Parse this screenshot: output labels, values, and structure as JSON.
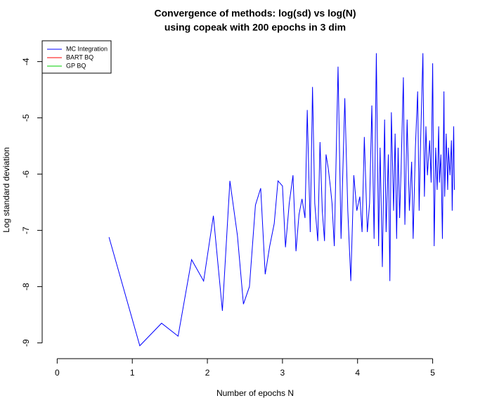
{
  "chart_data": {
    "type": "line",
    "title": "Convergence of methods: log(sd) vs log(N)",
    "subtitle": "using copeak with 200 epochs in 3 dim",
    "x_label": "Number of epochs N",
    "y_label": "Log standard deviation",
    "xlim": [
      -0.2,
      5.5
    ],
    "ylim": [
      -9.28,
      -3.63
    ],
    "xticks": [
      0,
      1,
      2,
      3,
      4,
      5
    ],
    "yticks": [
      -9,
      -8,
      -7,
      -6,
      -5,
      -4
    ],
    "grid": false,
    "legend": "topleft",
    "series": [
      {
        "name": "MC Integration",
        "color": "#0000ff",
        "x": [
          0.69,
          1.1,
          1.39,
          1.61,
          1.79,
          1.95,
          2.08,
          2.2,
          2.3,
          2.4,
          2.48,
          2.56,
          2.64,
          2.71,
          2.77,
          2.83,
          2.89,
          2.94,
          3.0,
          3.04,
          3.09,
          3.14,
          3.18,
          3.22,
          3.26,
          3.3,
          3.33,
          3.37,
          3.4,
          3.43,
          3.47,
          3.5,
          3.53,
          3.56,
          3.58,
          3.61,
          3.64,
          3.66,
          3.69,
          3.74,
          3.78,
          3.83,
          3.87,
          3.91,
          3.95,
          3.99,
          4.03,
          4.06,
          4.09,
          4.13,
          4.16,
          4.19,
          4.22,
          4.25,
          4.28,
          4.3,
          4.33,
          4.36,
          4.38,
          4.41,
          4.43,
          4.45,
          4.48,
          4.5,
          4.52,
          4.54,
          4.56,
          4.58,
          4.61,
          4.63,
          4.66,
          4.69,
          4.72,
          4.74,
          4.77,
          4.8,
          4.82,
          4.84,
          4.87,
          4.89,
          4.91,
          4.93,
          4.96,
          4.98,
          5.0,
          5.02,
          5.04,
          5.06,
          5.08,
          5.09,
          5.11,
          5.13,
          5.15,
          5.16,
          5.18,
          5.2,
          5.21,
          5.23,
          5.25,
          5.26,
          5.28,
          5.29
        ],
        "values": [
          -7.12,
          -9.05,
          -8.65,
          -8.88,
          -7.52,
          -7.9,
          -6.74,
          -8.43,
          -6.12,
          -7.09,
          -8.31,
          -8.0,
          -6.55,
          -6.25,
          -7.78,
          -7.28,
          -6.88,
          -6.12,
          -6.21,
          -7.3,
          -6.52,
          -6.02,
          -7.37,
          -6.72,
          -6.44,
          -6.78,
          -4.86,
          -7.03,
          -4.45,
          -6.52,
          -7.19,
          -5.43,
          -6.65,
          -7.19,
          -5.65,
          -5.9,
          -6.25,
          -6.52,
          -7.28,
          -4.09,
          -7.15,
          -4.65,
          -6.65,
          -7.9,
          -6.02,
          -6.65,
          -6.4,
          -7.03,
          -5.34,
          -7.03,
          -6.52,
          -4.78,
          -7.15,
          -3.85,
          -7.28,
          -5.53,
          -7.65,
          -5.03,
          -7.03,
          -5.65,
          -7.9,
          -4.9,
          -6.65,
          -5.28,
          -7.15,
          -5.53,
          -6.78,
          -5.9,
          -4.28,
          -6.9,
          -5.03,
          -6.65,
          -5.78,
          -7.15,
          -5.53,
          -4.53,
          -6.65,
          -5.4,
          -3.85,
          -6.4,
          -5.15,
          -6.02,
          -5.4,
          -6.15,
          -4.03,
          -7.28,
          -5.53,
          -6.28,
          -5.15,
          -6.15,
          -5.65,
          -7.15,
          -4.53,
          -6.4,
          -5.28,
          -6.28,
          -5.53,
          -6.02,
          -5.4,
          -6.65,
          -5.15,
          -6.28
        ]
      },
      {
        "name": "BART BQ",
        "color": "#ff0000",
        "x": [],
        "values": []
      },
      {
        "name": "GP BQ",
        "color": "#00cc00",
        "x": [],
        "values": []
      }
    ]
  }
}
